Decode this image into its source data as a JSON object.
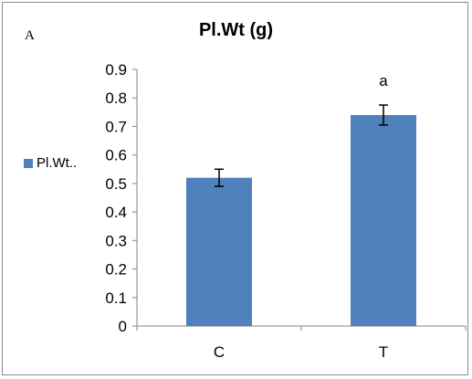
{
  "panel_label": "A",
  "chart_data": {
    "type": "bar",
    "title": "Pl.Wt (g)",
    "xlabel": "",
    "ylabel": "",
    "categories": [
      "C",
      "T"
    ],
    "series": [
      {
        "name": "Pl.Wt..",
        "values": [
          0.52,
          0.74
        ],
        "errors": [
          0.03,
          0.035
        ],
        "annotations": [
          "",
          "a"
        ],
        "color": "#4f81bd"
      }
    ],
    "ylim": [
      0,
      0.9
    ],
    "yticks": [
      "0",
      "0.1",
      "0.2",
      "0.3",
      "0.4",
      "0.5",
      "0.6",
      "0.7",
      "0.8",
      "0.9"
    ],
    "grid": false,
    "legend_position": "left"
  }
}
